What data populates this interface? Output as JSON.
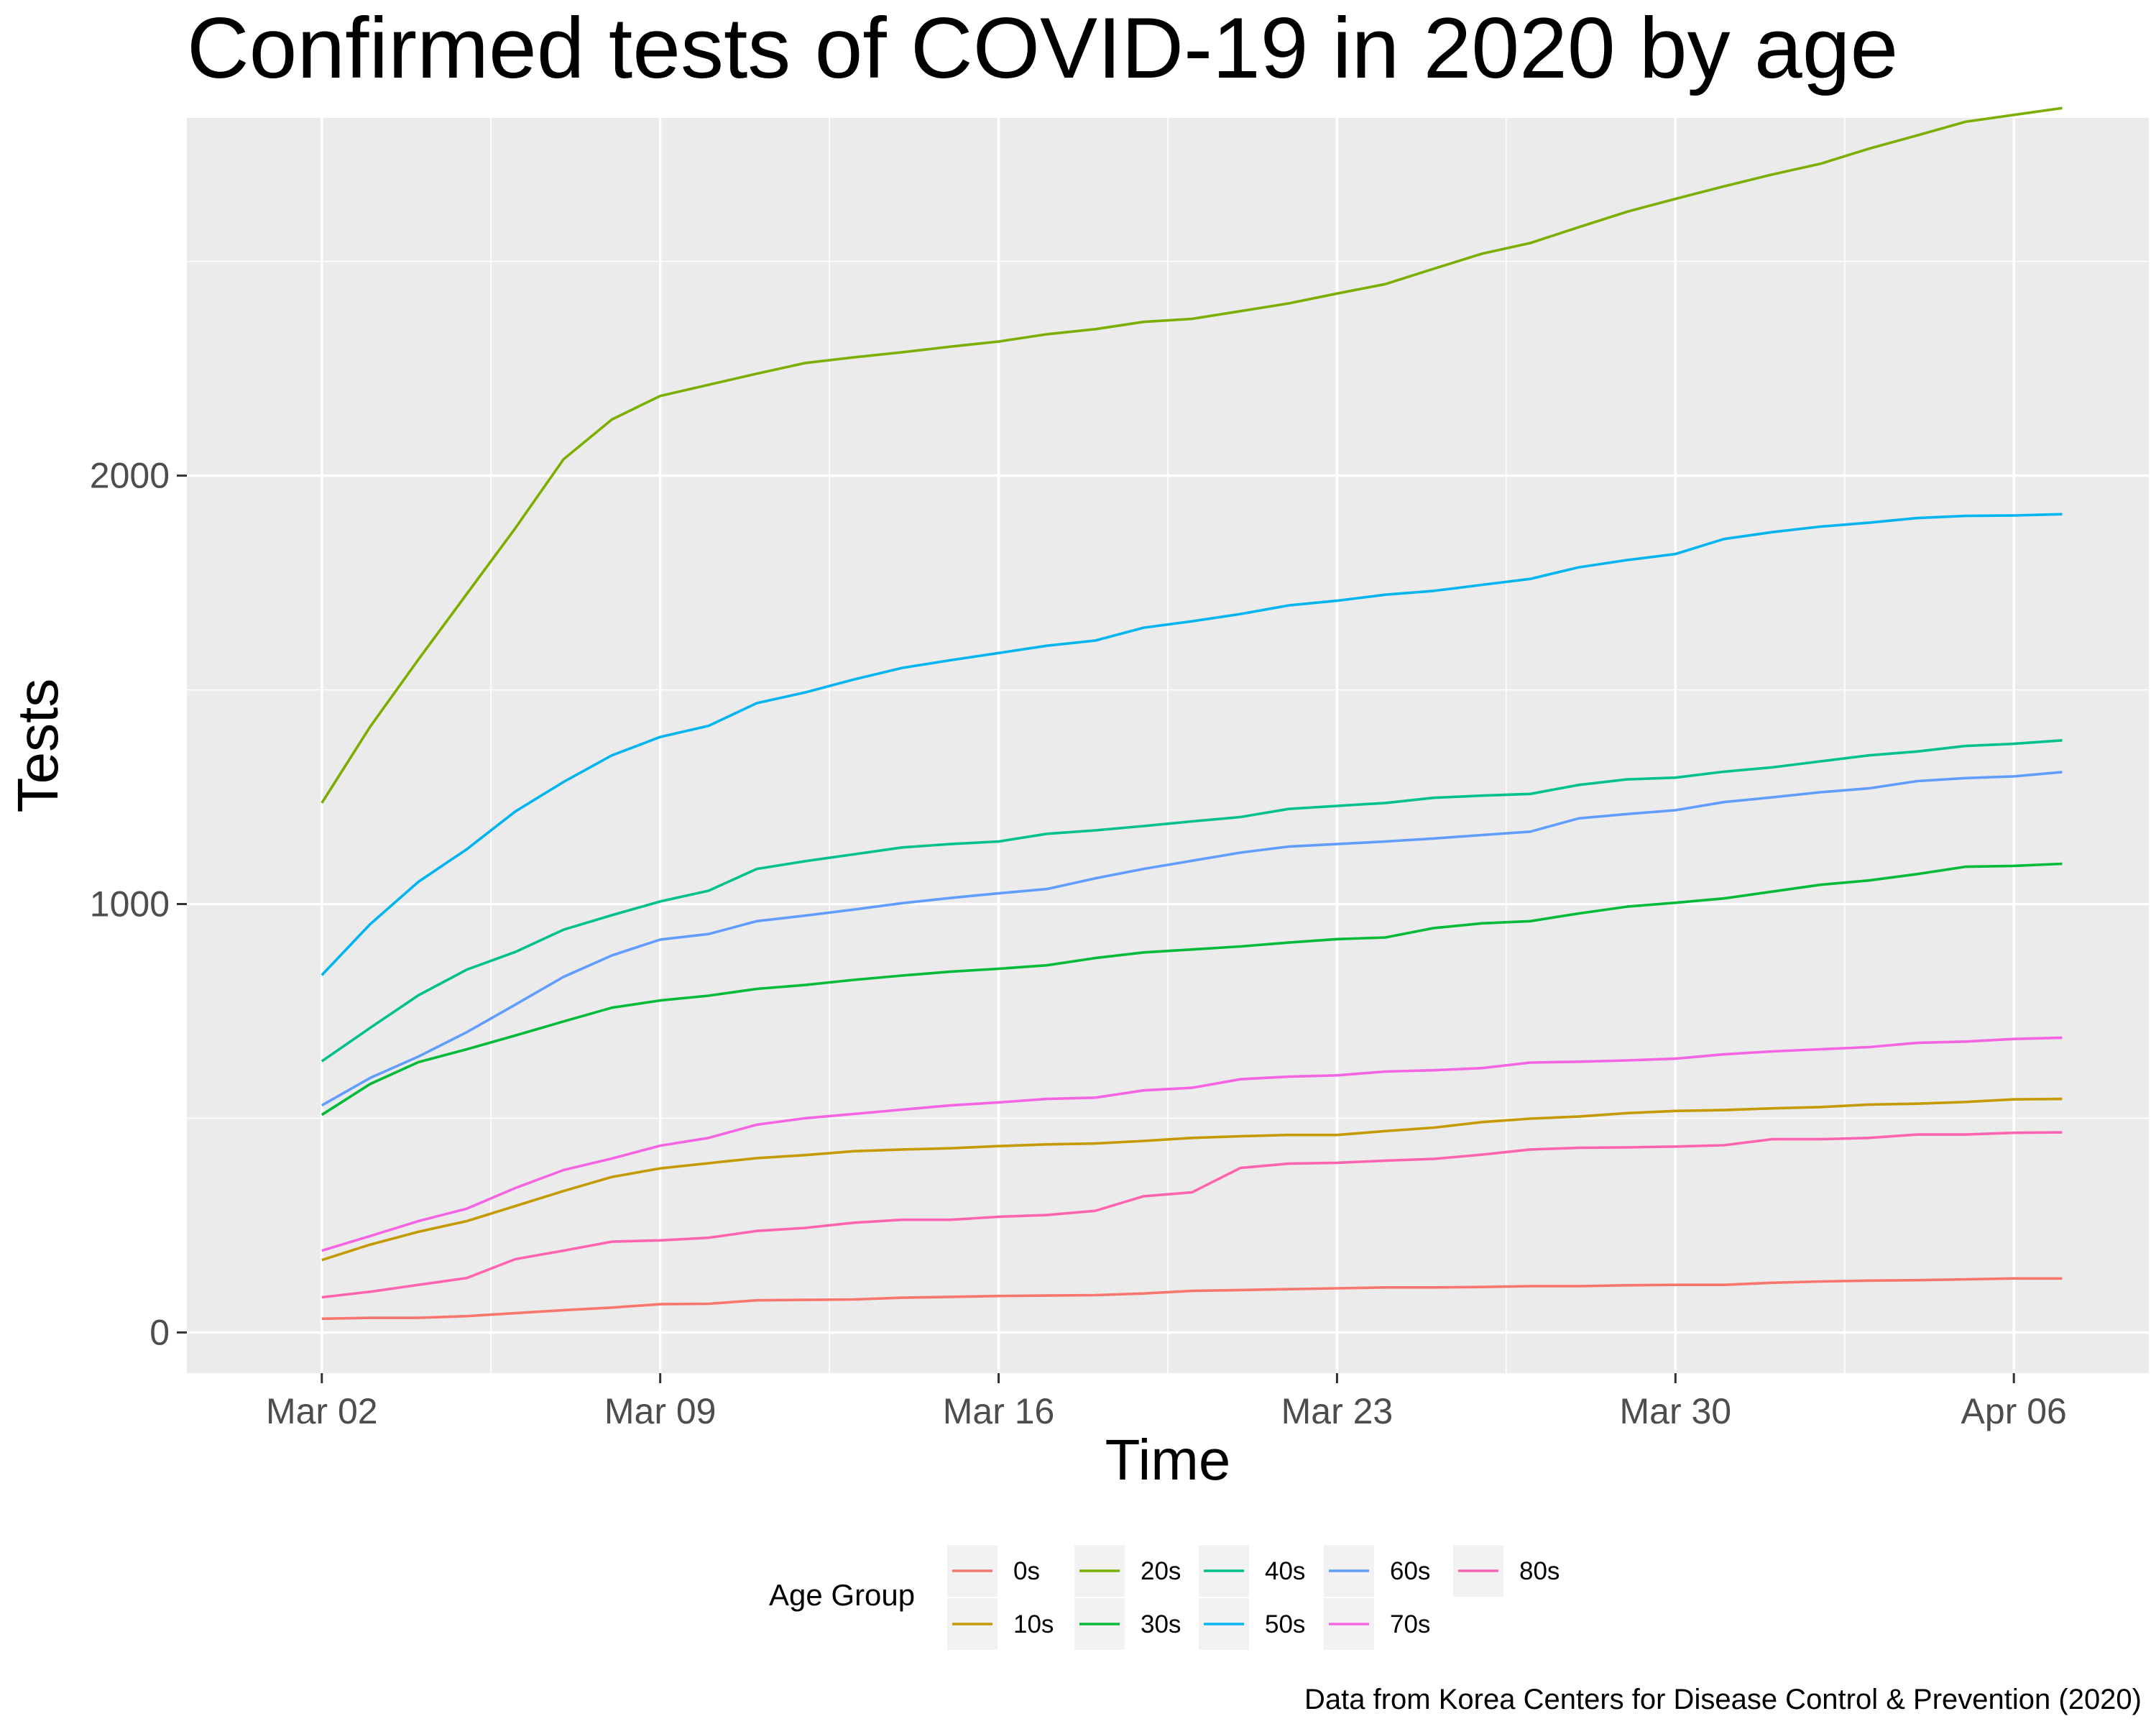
{
  "chart_data": {
    "type": "line",
    "title": "Confirmed tests of COVID-19 in 2020 by age",
    "xlabel": "Time",
    "ylabel": "Tests",
    "caption": "Data from Korea Centers for Disease Control & Prevention (2020)",
    "legend_title": "Age Group",
    "legend_position": "bottom",
    "grid": true,
    "x": [
      "2020-03-02",
      "2020-03-03",
      "2020-03-04",
      "2020-03-05",
      "2020-03-06",
      "2020-03-07",
      "2020-03-08",
      "2020-03-09",
      "2020-03-10",
      "2020-03-11",
      "2020-03-12",
      "2020-03-13",
      "2020-03-14",
      "2020-03-15",
      "2020-03-16",
      "2020-03-17",
      "2020-03-18",
      "2020-03-19",
      "2020-03-20",
      "2020-03-21",
      "2020-03-22",
      "2020-03-23",
      "2020-03-24",
      "2020-03-25",
      "2020-03-26",
      "2020-03-27",
      "2020-03-28",
      "2020-03-29",
      "2020-03-30",
      "2020-03-31",
      "2020-04-01",
      "2020-04-02",
      "2020-04-03",
      "2020-04-04",
      "2020-04-05",
      "2020-04-06",
      "2020-04-07"
    ],
    "xlim": [
      "2020-02-28T05:00",
      "2020-04-08T19:00"
    ],
    "ylim": [
      -95,
      2835
    ],
    "x_ticks": [
      {
        "date": "2020-03-02",
        "label": "Mar 02"
      },
      {
        "date": "2020-03-09",
        "label": "Mar 09"
      },
      {
        "date": "2020-03-16",
        "label": "Mar 16"
      },
      {
        "date": "2020-03-23",
        "label": "Mar 23"
      },
      {
        "date": "2020-03-30",
        "label": "Mar 30"
      },
      {
        "date": "2020-04-06",
        "label": "Apr 06"
      }
    ],
    "x_minor_ticks": [
      "2020-03-05T12:00",
      "2020-03-12T12:00",
      "2020-03-19T12:00",
      "2020-03-26T12:00",
      "2020-04-02T12:00"
    ],
    "y_ticks": [
      0,
      1000,
      2000
    ],
    "y_minor_ticks": [
      500,
      1500,
      2500
    ],
    "series": [
      {
        "name": "0s",
        "color": "#F8766D",
        "values": [
          32,
          34,
          34,
          38,
          45,
          52,
          58,
          66,
          67,
          75,
          76,
          77,
          81,
          83,
          85,
          86,
          87,
          91,
          97,
          99,
          101,
          103,
          105,
          105,
          106,
          108,
          108,
          110,
          111,
          111,
          116,
          119,
          121,
          122,
          124,
          126,
          126
        ]
      },
      {
        "name": "10s",
        "color": "#C49A00",
        "values": [
          169,
          205,
          235,
          260,
          295,
          330,
          363,
          383,
          395,
          407,
          414,
          423,
          427,
          430,
          435,
          439,
          441,
          447,
          454,
          458,
          461,
          461,
          470,
          478,
          491,
          499,
          504,
          512,
          517,
          519,
          523,
          526,
          532,
          534,
          538,
          544,
          545
        ]
      },
      {
        "name": "20s",
        "color": "#7CAE00",
        "values": [
          1236,
          1414,
          1571,
          1724,
          1877,
          2038,
          2131,
          2186,
          2212,
          2238,
          2263,
          2276,
          2288,
          2301,
          2313,
          2330,
          2342,
          2359,
          2366,
          2384,
          2402,
          2425,
          2447,
          2483,
          2518,
          2543,
          2580,
          2616,
          2646,
          2675,
          2703,
          2728,
          2763,
          2794,
          2826,
          2842,
          2858
        ]
      },
      {
        "name": "30s",
        "color": "#00BA38",
        "values": [
          508,
          580,
          631,
          661,
          693,
          726,
          758,
          775,
          786,
          802,
          811,
          823,
          833,
          842,
          849,
          857,
          874,
          887,
          894,
          901,
          910,
          918,
          922,
          944,
          955,
          960,
          978,
          994,
          1003,
          1013,
          1029,
          1045,
          1055,
          1070,
          1087,
          1089,
          1094
        ]
      },
      {
        "name": "40s",
        "color": "#00C08B",
        "values": [
          633,
          711,
          787,
          847,
          888,
          940,
          974,
          1006,
          1031,
          1082,
          1100,
          1116,
          1132,
          1140,
          1146,
          1164,
          1172,
          1182,
          1193,
          1203,
          1222,
          1229,
          1236,
          1248,
          1253,
          1257,
          1278,
          1291,
          1295,
          1309,
          1319,
          1333,
          1347,
          1356,
          1369,
          1374,
          1382
        ]
      },
      {
        "name": "50s",
        "color": "#00B4EF",
        "values": [
          834,
          953,
          1052,
          1128,
          1216,
          1285,
          1347,
          1390,
          1416,
          1469,
          1494,
          1524,
          1551,
          1569,
          1586,
          1603,
          1615,
          1645,
          1660,
          1677,
          1697,
          1708,
          1722,
          1731,
          1745,
          1759,
          1786,
          1803,
          1817,
          1852,
          1868,
          1881,
          1890,
          1901,
          1906,
          1907,
          1910
        ]
      },
      {
        "name": "60s",
        "color": "#619CFF",
        "values": [
          530,
          594,
          644,
          701,
          765,
          830,
          880,
          917,
          930,
          960,
          973,
          987,
          1002,
          1014,
          1025,
          1035,
          1060,
          1082,
          1101,
          1120,
          1134,
          1140,
          1146,
          1153,
          1161,
          1169,
          1200,
          1210,
          1219,
          1238,
          1249,
          1261,
          1270,
          1287,
          1294,
          1298,
          1308
        ]
      },
      {
        "name": "70s",
        "color": "#F564E3",
        "values": [
          191,
          225,
          260,
          289,
          337,
          379,
          406,
          436,
          454,
          485,
          500,
          510,
          520,
          530,
          537,
          545,
          548,
          565,
          571,
          591,
          597,
          600,
          609,
          612,
          617,
          630,
          632,
          635,
          639,
          649,
          656,
          661,
          666,
          676,
          679,
          685,
          688
        ]
      },
      {
        "name": "80s",
        "color": "#FF64B0",
        "values": [
          82,
          95,
          111,
          127,
          171,
          191,
          212,
          215,
          221,
          237,
          244,
          256,
          263,
          263,
          270,
          274,
          284,
          318,
          327,
          384,
          394,
          396,
          401,
          405,
          415,
          427,
          431,
          432,
          434,
          437,
          451,
          451,
          454,
          462,
          462,
          466,
          467
        ]
      }
    ]
  }
}
